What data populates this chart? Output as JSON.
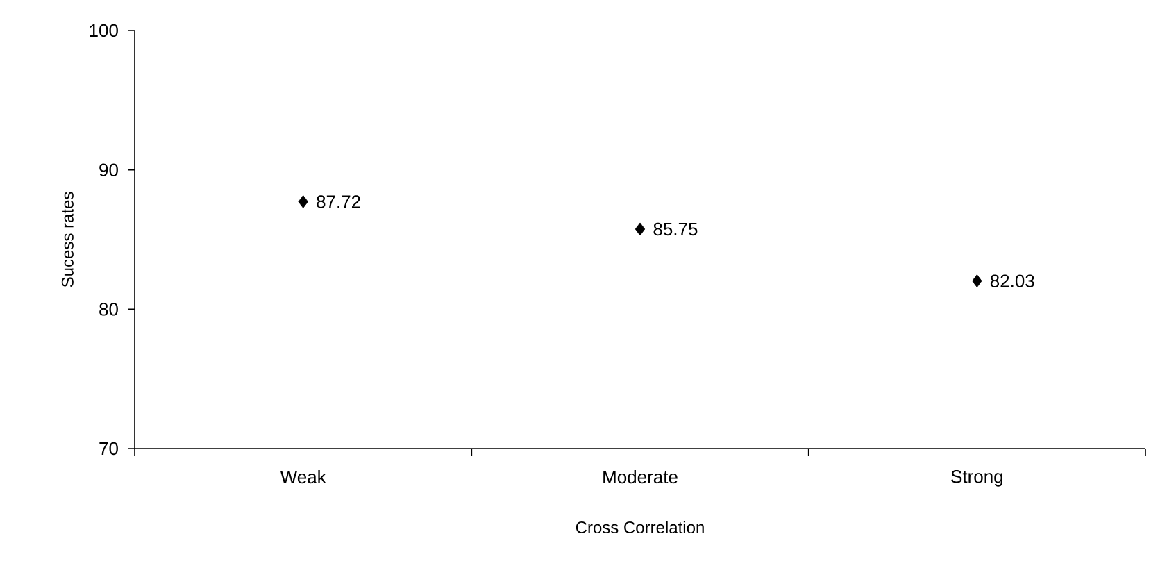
{
  "chart_data": {
    "type": "scatter",
    "xlabel": "Cross Correlation",
    "ylabel": "Sucess rates",
    "categories": [
      "Weak",
      "Moderate",
      "Strong"
    ],
    "values": [
      87.72,
      85.75,
      82.03
    ],
    "color": "#000000",
    "marker": "diamond",
    "ylim": [
      70,
      100
    ],
    "yticks": [
      70,
      80,
      90,
      100
    ],
    "data_labels": true
  }
}
